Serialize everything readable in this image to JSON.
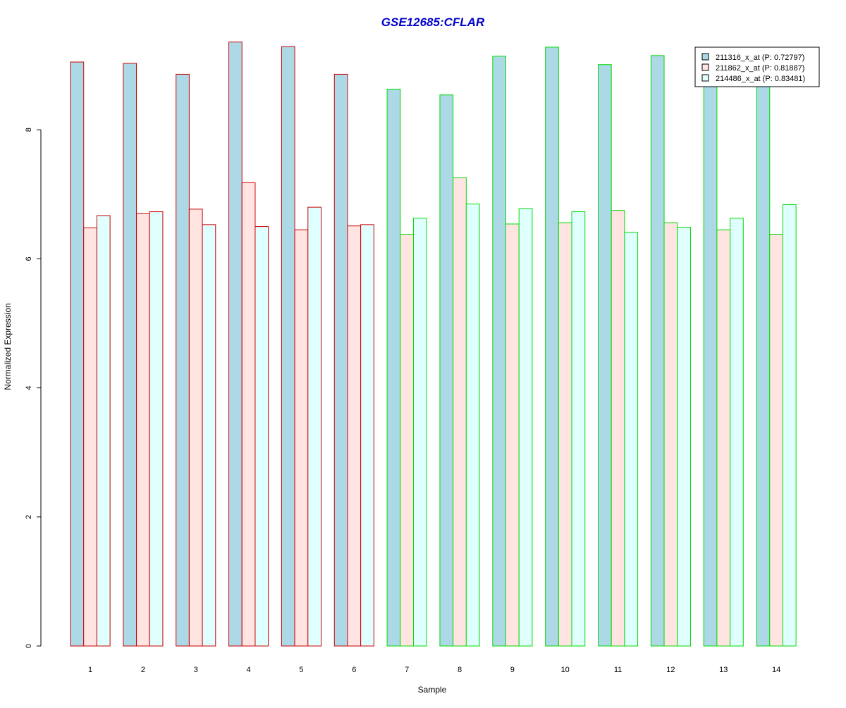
{
  "chart_data": {
    "type": "bar",
    "title": "GSE12685:CFLAR",
    "xlabel": "Sample",
    "ylabel": "Normalized Expression",
    "ylim": [
      0,
      9.4
    ],
    "yticks": [
      0,
      2,
      4,
      6,
      8
    ],
    "grid": false,
    "legend_position": "top-right",
    "categories": [
      "1",
      "2",
      "3",
      "4",
      "5",
      "6",
      "7",
      "8",
      "9",
      "10",
      "11",
      "12",
      "13",
      "14"
    ],
    "groups": [
      {
        "samples": [
          "1",
          "2",
          "3",
          "4",
          "5",
          "6"
        ],
        "border_color": "#cc0000"
      },
      {
        "samples": [
          "7",
          "8",
          "9",
          "10",
          "11",
          "12",
          "13",
          "14"
        ],
        "border_color": "#00dd00"
      }
    ],
    "series": [
      {
        "name": "211316_x_at (P: 0.72797)",
        "color": "#add8e6",
        "values": [
          9.05,
          9.03,
          8.86,
          9.36,
          9.29,
          8.86,
          8.63,
          8.54,
          9.14,
          9.28,
          9.01,
          9.15,
          8.71,
          8.7
        ]
      },
      {
        "name": "211862_x_at (P: 0.81887)",
        "color": "#ffe4e1",
        "values": [
          6.48,
          6.7,
          6.77,
          7.18,
          6.45,
          6.51,
          6.38,
          7.26,
          6.54,
          6.56,
          6.75,
          6.56,
          6.45,
          6.38
        ]
      },
      {
        "name": "214486_x_at (P: 0.83481)",
        "color": "#e0ffff",
        "values": [
          6.67,
          6.73,
          6.53,
          6.5,
          6.8,
          6.53,
          6.63,
          6.85,
          6.78,
          6.73,
          6.41,
          6.49,
          6.63,
          6.84
        ]
      }
    ],
    "title_color": "#0000cc"
  }
}
